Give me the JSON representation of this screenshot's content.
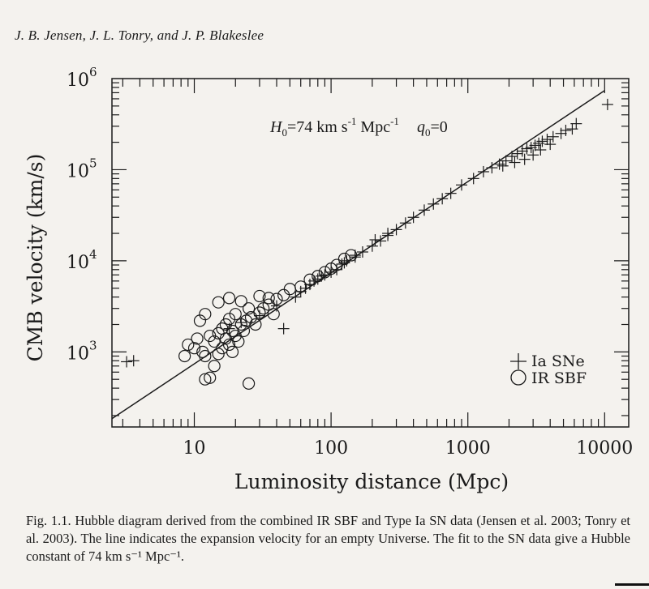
{
  "header": {
    "authors": "J. B. Jensen, J. L. Tonry, and J. P. Blakeslee"
  },
  "caption": {
    "text": "Fig. 1.1. Hubble diagram derived from the combined IR SBF and Type Ia SN data (Jensen et al. 2003; Tonry et al. 2003). The line indicates the expansion velocity for an empty Universe. The fit to the SN data give a Hubble constant of 74 km s⁻¹ Mpc⁻¹."
  },
  "chart_data": {
    "type": "scatter",
    "xlabel": "Luminosity distance (Mpc)",
    "ylabel": "CMB velocity (km/s)",
    "xscale": "log",
    "yscale": "log",
    "xlim": [
      2.5,
      15000
    ],
    "ylim": [
      150,
      1000000
    ],
    "x_tick_labels": [
      "10",
      "100",
      "1000",
      "10000"
    ],
    "y_tick_labels": [
      "10^3",
      "10^4",
      "10^5",
      "10^6"
    ],
    "annotation": {
      "H0_label": "H",
      "H0_sub": "0",
      "H0_value": "=74 km s",
      "H0_exp1": "-1",
      "H0_unit": " Mpc",
      "H0_exp2": "-1",
      "q0_label": "q",
      "q0_sub": "0",
      "q0_value": "=0"
    },
    "legend": {
      "position": "bottom-right",
      "entries": [
        "Ia SNe",
        "IR SBF"
      ]
    },
    "fit_line": {
      "H0": 74,
      "q0": 0
    },
    "series": [
      {
        "name": "Ia SNe",
        "marker": "plus",
        "points": [
          [
            3.2,
            780
          ],
          [
            3.6,
            800
          ],
          [
            18,
            1800
          ],
          [
            22,
            2100
          ],
          [
            30,
            2500
          ],
          [
            45,
            1800
          ],
          [
            40,
            3200
          ],
          [
            55,
            4000
          ],
          [
            65,
            5000
          ],
          [
            70,
            5500
          ],
          [
            80,
            6300
          ],
          [
            90,
            7000
          ],
          [
            100,
            7500
          ],
          [
            110,
            8000
          ],
          [
            120,
            9200
          ],
          [
            130,
            10000
          ],
          [
            150,
            11000
          ],
          [
            170,
            12500
          ],
          [
            200,
            14500
          ],
          [
            230,
            16500
          ],
          [
            260,
            19000
          ],
          [
            300,
            22000
          ],
          [
            350,
            26000
          ],
          [
            400,
            30000
          ],
          [
            480,
            36000
          ],
          [
            560,
            42000
          ],
          [
            650,
            48000
          ],
          [
            750,
            55000
          ],
          [
            900,
            68000
          ],
          [
            1100,
            80000
          ],
          [
            1300,
            95000
          ],
          [
            1500,
            105000
          ],
          [
            1700,
            115000
          ],
          [
            1900,
            125000
          ],
          [
            2100,
            140000
          ],
          [
            2300,
            150000
          ],
          [
            2500,
            160000
          ],
          [
            2700,
            170000
          ],
          [
            2900,
            175000
          ],
          [
            3100,
            185000
          ],
          [
            3300,
            195000
          ],
          [
            3500,
            205000
          ],
          [
            3800,
            215000
          ],
          [
            4200,
            230000
          ],
          [
            4800,
            250000
          ],
          [
            5200,
            270000
          ],
          [
            5800,
            280000
          ],
          [
            6200,
            320000
          ],
          [
            10500,
            520000
          ],
          [
            2600,
            130000
          ],
          [
            3000,
            145000
          ],
          [
            3400,
            165000
          ],
          [
            4000,
            190000
          ],
          [
            2200,
            120000
          ],
          [
            1800,
            110000
          ],
          [
            260,
            20000
          ],
          [
            210,
            17000
          ],
          [
            150,
            11500
          ],
          [
            125,
            9500
          ],
          [
            85,
            6800
          ],
          [
            75,
            6000
          ],
          [
            60,
            4600
          ]
        ]
      },
      {
        "name": "IR SBF",
        "marker": "circle",
        "points": [
          [
            9,
            1200
          ],
          [
            10,
            1100
          ],
          [
            10.5,
            1400
          ],
          [
            11,
            2200
          ],
          [
            11.5,
            1000
          ],
          [
            12,
            900
          ],
          [
            12,
            500
          ],
          [
            13,
            1500
          ],
          [
            13,
            520
          ],
          [
            14,
            1300
          ],
          [
            14,
            700
          ],
          [
            15,
            1600
          ],
          [
            15,
            950
          ],
          [
            16,
            1800
          ],
          [
            16,
            1100
          ],
          [
            17,
            1400
          ],
          [
            17,
            2000
          ],
          [
            18,
            2300
          ],
          [
            18,
            1200
          ],
          [
            19,
            1700
          ],
          [
            19,
            1000
          ],
          [
            20,
            2600
          ],
          [
            20,
            1500
          ],
          [
            21,
            1300
          ],
          [
            22,
            2000
          ],
          [
            23,
            1700
          ],
          [
            24,
            2200
          ],
          [
            25,
            3000
          ],
          [
            25,
            450
          ],
          [
            26,
            2400
          ],
          [
            28,
            2000
          ],
          [
            30,
            2700
          ],
          [
            32,
            3000
          ],
          [
            35,
            3300
          ],
          [
            38,
            2600
          ],
          [
            40,
            3800
          ],
          [
            45,
            4200
          ],
          [
            50,
            4900
          ],
          [
            60,
            5200
          ],
          [
            70,
            6200
          ],
          [
            80,
            6800
          ],
          [
            90,
            7500
          ],
          [
            100,
            8200
          ],
          [
            110,
            9000
          ],
          [
            125,
            10500
          ],
          [
            140,
            11500
          ],
          [
            18,
            3900
          ],
          [
            15,
            3500
          ],
          [
            22,
            3600
          ],
          [
            30,
            4100
          ],
          [
            35,
            3900
          ],
          [
            12,
            2600
          ],
          [
            8.5,
            900
          ]
        ]
      }
    ]
  }
}
